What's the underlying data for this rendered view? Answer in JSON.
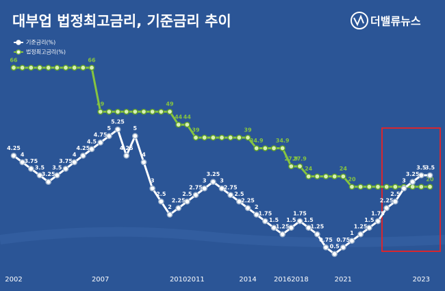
{
  "chart_data": {
    "type": "line",
    "title": "대부업 법정최고금리, 기준금리 추이",
    "logo": "더밸류뉴스",
    "categories": [
      "2002",
      null,
      null,
      null,
      null,
      null,
      null,
      null,
      null,
      null,
      "2007",
      null,
      null,
      null,
      null,
      null,
      null,
      null,
      null,
      "2010",
      null,
      "2011",
      null,
      null,
      null,
      null,
      null,
      "2014",
      null,
      null,
      null,
      "2016",
      null,
      "2018",
      null,
      null,
      null,
      null,
      "2021",
      null,
      null,
      null,
      null,
      null,
      null,
      null,
      null,
      "2023",
      null
    ],
    "series": [
      {
        "name": "기준금리(%)",
        "color": "#ffffff",
        "axis": "y",
        "values": [
          4.25,
          4,
          3.75,
          3.5,
          3.25,
          3.5,
          3.75,
          4,
          4.25,
          4.5,
          4.75,
          5,
          5.25,
          4.25,
          5,
          4,
          3,
          2.5,
          2,
          2.25,
          2.5,
          2.75,
          3,
          3.25,
          3,
          2.75,
          2.5,
          2.25,
          2,
          1.75,
          1.5,
          1.25,
          1.5,
          1.75,
          1.5,
          1.25,
          0.75,
          0.5,
          0.75,
          1,
          1.25,
          1.5,
          1.75,
          2.25,
          2.5,
          3,
          3.25,
          3.5,
          3.5
        ]
      },
      {
        "name": "법정최고금리(%)",
        "color": "#86c440",
        "axis": "y2",
        "values": [
          66,
          66,
          66,
          66,
          66,
          66,
          66,
          66,
          66,
          66,
          49,
          49,
          49,
          49,
          49,
          49,
          49,
          49,
          49,
          44,
          44,
          39,
          39,
          39,
          39,
          39,
          39,
          39,
          34.9,
          34.9,
          34.9,
          34.9,
          27.9,
          27.9,
          24,
          24,
          24,
          24,
          24,
          20,
          20,
          20,
          20,
          20,
          20,
          20,
          20,
          20,
          20
        ]
      }
    ],
    "ylim": [
      0,
      8.1
    ],
    "y2lim": [
      -11,
      71
    ],
    "legend": "top-left"
  }
}
